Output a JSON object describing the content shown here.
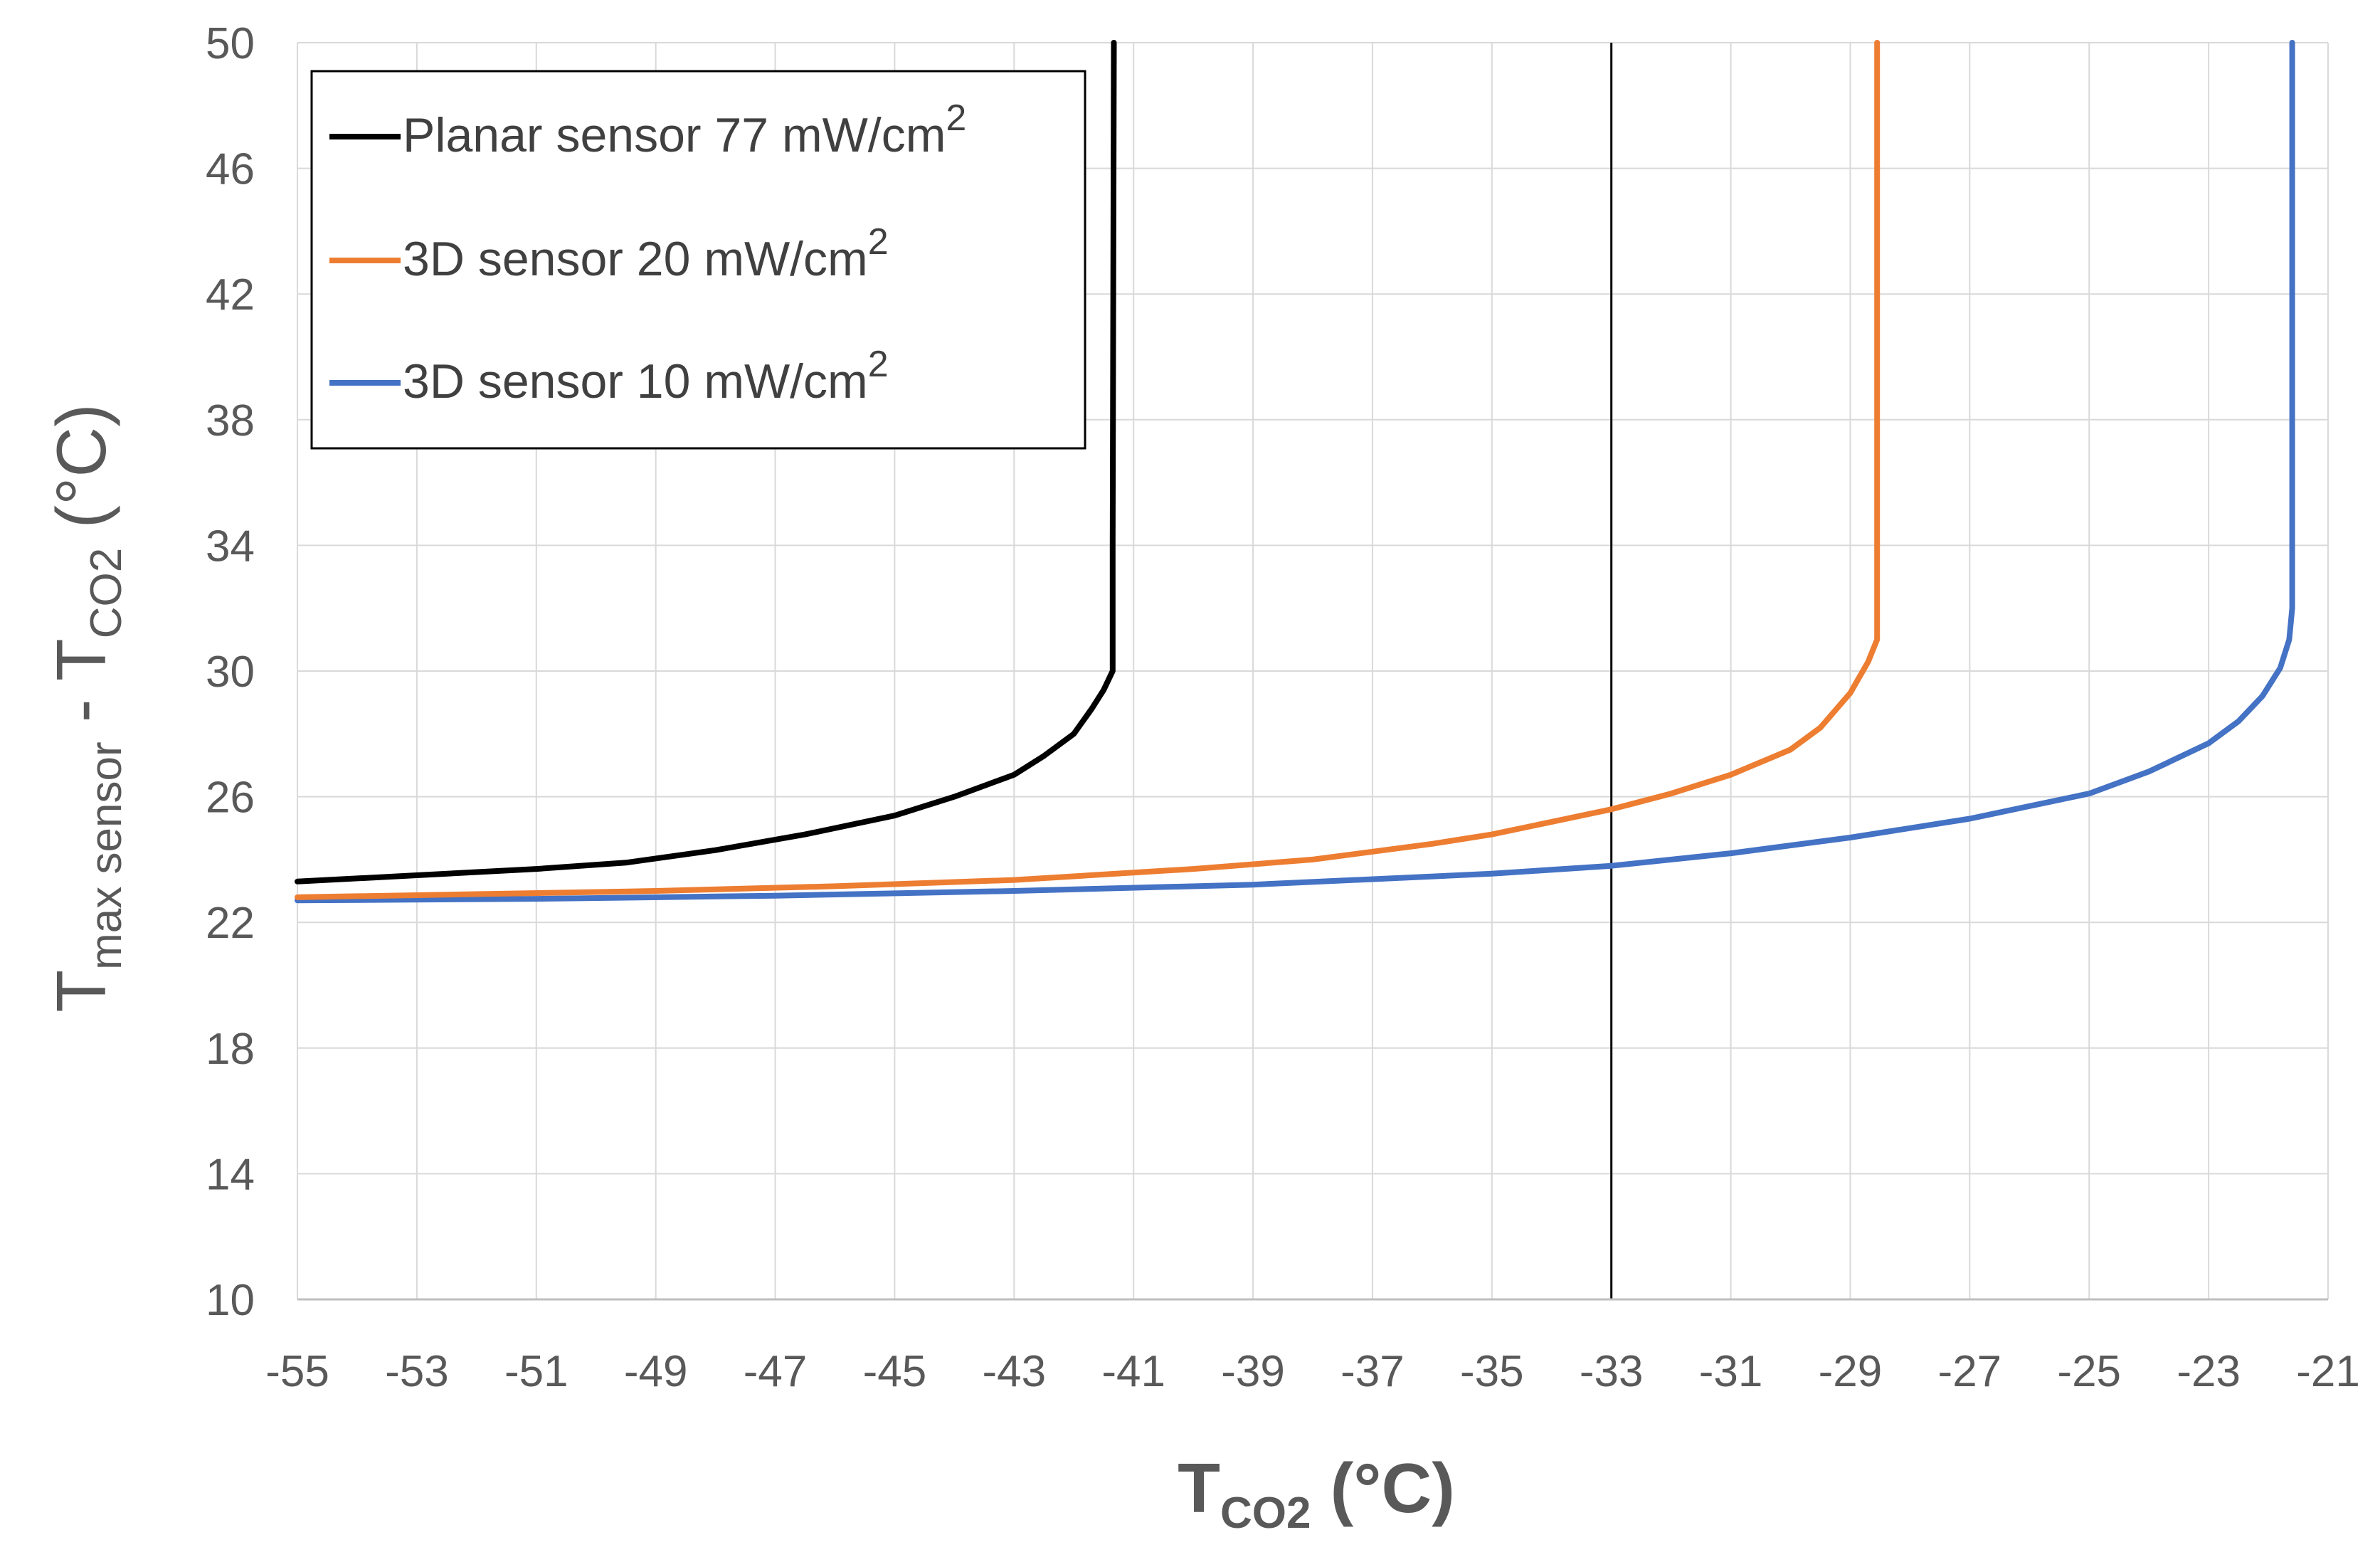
{
  "chart_data": {
    "type": "line",
    "title": "",
    "xlabel": {
      "main": "T",
      "sub": "CO2",
      "suffix": " (°C)"
    },
    "ylabel": {
      "main": "T",
      "sub1": "max sensor",
      "mid": " - T",
      "sub2": "CO2",
      "suffix": " (°C)"
    },
    "xlim": [
      -55,
      -21
    ],
    "ylim": [
      10,
      50
    ],
    "xticks": [
      -55,
      -53,
      -51,
      -49,
      -47,
      -45,
      -43,
      -41,
      -39,
      -37,
      -35,
      -33,
      -31,
      -29,
      -27,
      -25,
      -23,
      -21
    ],
    "yticks": [
      10,
      14,
      18,
      22,
      26,
      30,
      34,
      38,
      42,
      46,
      50
    ],
    "grid": true,
    "legend_position": "top-left",
    "reference_line": {
      "x": -33,
      "color": "#000000"
    },
    "series": [
      {
        "name": "Planar sensor 77 mW/cm",
        "sup": "2",
        "color": "#000000",
        "points": [
          [
            -55,
            23.3
          ],
          [
            -53,
            23.5
          ],
          [
            -51,
            23.7
          ],
          [
            -49.5,
            23.9
          ],
          [
            -48,
            24.3
          ],
          [
            -46.5,
            24.8
          ],
          [
            -45,
            25.4
          ],
          [
            -44,
            26.0
          ],
          [
            -43,
            26.7
          ],
          [
            -42.5,
            27.3
          ],
          [
            -42,
            28.0
          ],
          [
            -41.7,
            28.8
          ],
          [
            -41.5,
            29.4
          ],
          [
            -41.35,
            30.0
          ],
          [
            -41.35,
            34
          ],
          [
            -41.33,
            50
          ]
        ]
      },
      {
        "name": "3D sensor 20 mW/cm",
        "sup": "2",
        "color": "#ED7D31",
        "points": [
          [
            -55,
            22.8
          ],
          [
            -52,
            22.9
          ],
          [
            -49,
            23.0
          ],
          [
            -46,
            23.15
          ],
          [
            -43,
            23.35
          ],
          [
            -40,
            23.7
          ],
          [
            -38,
            24.0
          ],
          [
            -36,
            24.5
          ],
          [
            -35,
            24.8
          ],
          [
            -34,
            25.2
          ],
          [
            -33,
            25.6
          ],
          [
            -32,
            26.1
          ],
          [
            -31,
            26.7
          ],
          [
            -30,
            27.5
          ],
          [
            -29.5,
            28.2
          ],
          [
            -29,
            29.3
          ],
          [
            -28.7,
            30.3
          ],
          [
            -28.55,
            31.0
          ],
          [
            -28.55,
            40
          ],
          [
            -28.55,
            50
          ]
        ]
      },
      {
        "name": "3D sensor 10 mW/cm",
        "sup": "2",
        "color": "#4472C4",
        "points": [
          [
            -55,
            22.7
          ],
          [
            -51,
            22.75
          ],
          [
            -47,
            22.85
          ],
          [
            -43,
            23.0
          ],
          [
            -39,
            23.2
          ],
          [
            -35,
            23.55
          ],
          [
            -33,
            23.8
          ],
          [
            -31,
            24.2
          ],
          [
            -29,
            24.7
          ],
          [
            -27,
            25.3
          ],
          [
            -25,
            26.1
          ],
          [
            -24,
            26.8
          ],
          [
            -23,
            27.7
          ],
          [
            -22.5,
            28.4
          ],
          [
            -22.1,
            29.2
          ],
          [
            -21.8,
            30.1
          ],
          [
            -21.65,
            31.0
          ],
          [
            -21.6,
            32.0
          ],
          [
            -21.6,
            40
          ],
          [
            -21.6,
            50
          ]
        ]
      }
    ]
  }
}
